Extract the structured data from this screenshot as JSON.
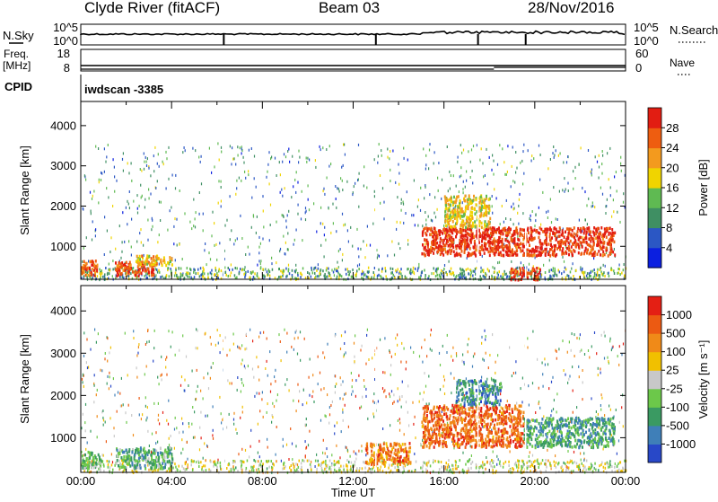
{
  "header": {
    "station": "Clyde River (fitACF)",
    "beam": "Beam 03",
    "date": "28/Nov/2016"
  },
  "top_panels": {
    "nsky_label": "N.Sky",
    "nsky_ticks": [
      "10^5",
      "10^0"
    ],
    "nsearch_label": "N.Search",
    "nsearch_ticks": [
      "10^5",
      "10^0"
    ],
    "freq_label": "Freq.",
    "freq_unit": "[MHz]",
    "freq_ticks": [
      "18",
      "8"
    ],
    "nave_label": "Nave",
    "nave_ticks": [
      "60",
      "0"
    ],
    "cpid_label": "CPID",
    "cpid_text": "iwdscan -3385"
  },
  "chart_data": [
    {
      "type": "heatmap",
      "name": "power",
      "ylabel": "Slant Range [km]",
      "y_ticks": [
        1000,
        2000,
        3000,
        4000
      ],
      "ylim": [
        180,
        4600
      ],
      "xlim_hours": [
        0,
        24
      ],
      "colorbar_label": "Power [dB]",
      "colorbar_ticks": [
        "4",
        "8",
        "12",
        "16",
        "20",
        "24",
        "28"
      ],
      "colorbar_colors": [
        "#0b1fe0",
        "#2b57c4",
        "#3f8f63",
        "#5fba52",
        "#f0d400",
        "#f39a1e",
        "#ee5d10",
        "#e21d12"
      ],
      "regions": [
        {
          "t": [
            0.0,
            0.7
          ],
          "r": [
            300,
            700
          ],
          "level": 0.85
        },
        {
          "t": [
            1.5,
            3.2
          ],
          "r": [
            300,
            650
          ],
          "level": 0.9
        },
        {
          "t": [
            2.4,
            4.0
          ],
          "r": [
            550,
            800
          ],
          "level": 0.65
        },
        {
          "t": [
            15.0,
            23.5
          ],
          "r": [
            800,
            1500
          ],
          "level": 0.95
        },
        {
          "t": [
            16.0,
            18.0
          ],
          "r": [
            1500,
            2300
          ],
          "level": 0.6
        },
        {
          "t": [
            18.8,
            20.2
          ],
          "r": [
            200,
            500
          ],
          "level": 0.9
        }
      ]
    },
    {
      "type": "heatmap",
      "name": "velocity",
      "ylabel": "Slant Range [km]",
      "y_ticks": [
        1000,
        2000,
        3000,
        4000
      ],
      "ylim": [
        180,
        4600
      ],
      "xlim_hours": [
        0,
        24
      ],
      "xlabel": "Time UT",
      "x_ticks": [
        "00:00",
        "04:00",
        "08:00",
        "12:00",
        "16:00",
        "20:00",
        "00:00"
      ],
      "colorbar_label": "Velocity [m s⁻¹]",
      "colorbar_ticks": [
        "1000",
        "500",
        "100",
        "25",
        "-25",
        "-100",
        "-500",
        "-1000"
      ],
      "colorbar_colors": [
        "#2848c8",
        "#3f7fb8",
        "#3a9a62",
        "#6cc84a",
        "#c8c8c8",
        "#f1c000",
        "#f08a18",
        "#ec5a12",
        "#e41f14"
      ],
      "regions": [
        {
          "t": [
            0.0,
            1.0
          ],
          "r": [
            300,
            700
          ],
          "level": 0.35
        },
        {
          "t": [
            1.5,
            4.0
          ],
          "r": [
            300,
            800
          ],
          "level": 0.3
        },
        {
          "t": [
            12.5,
            14.5
          ],
          "r": [
            400,
            900
          ],
          "level": 0.8
        },
        {
          "t": [
            15.0,
            19.5
          ],
          "r": [
            800,
            1800
          ],
          "level": 0.85
        },
        {
          "t": [
            19.5,
            23.5
          ],
          "r": [
            800,
            1500
          ],
          "level": 0.25
        },
        {
          "t": [
            16.5,
            18.5
          ],
          "r": [
            1800,
            2400
          ],
          "level": 0.2
        }
      ]
    }
  ]
}
